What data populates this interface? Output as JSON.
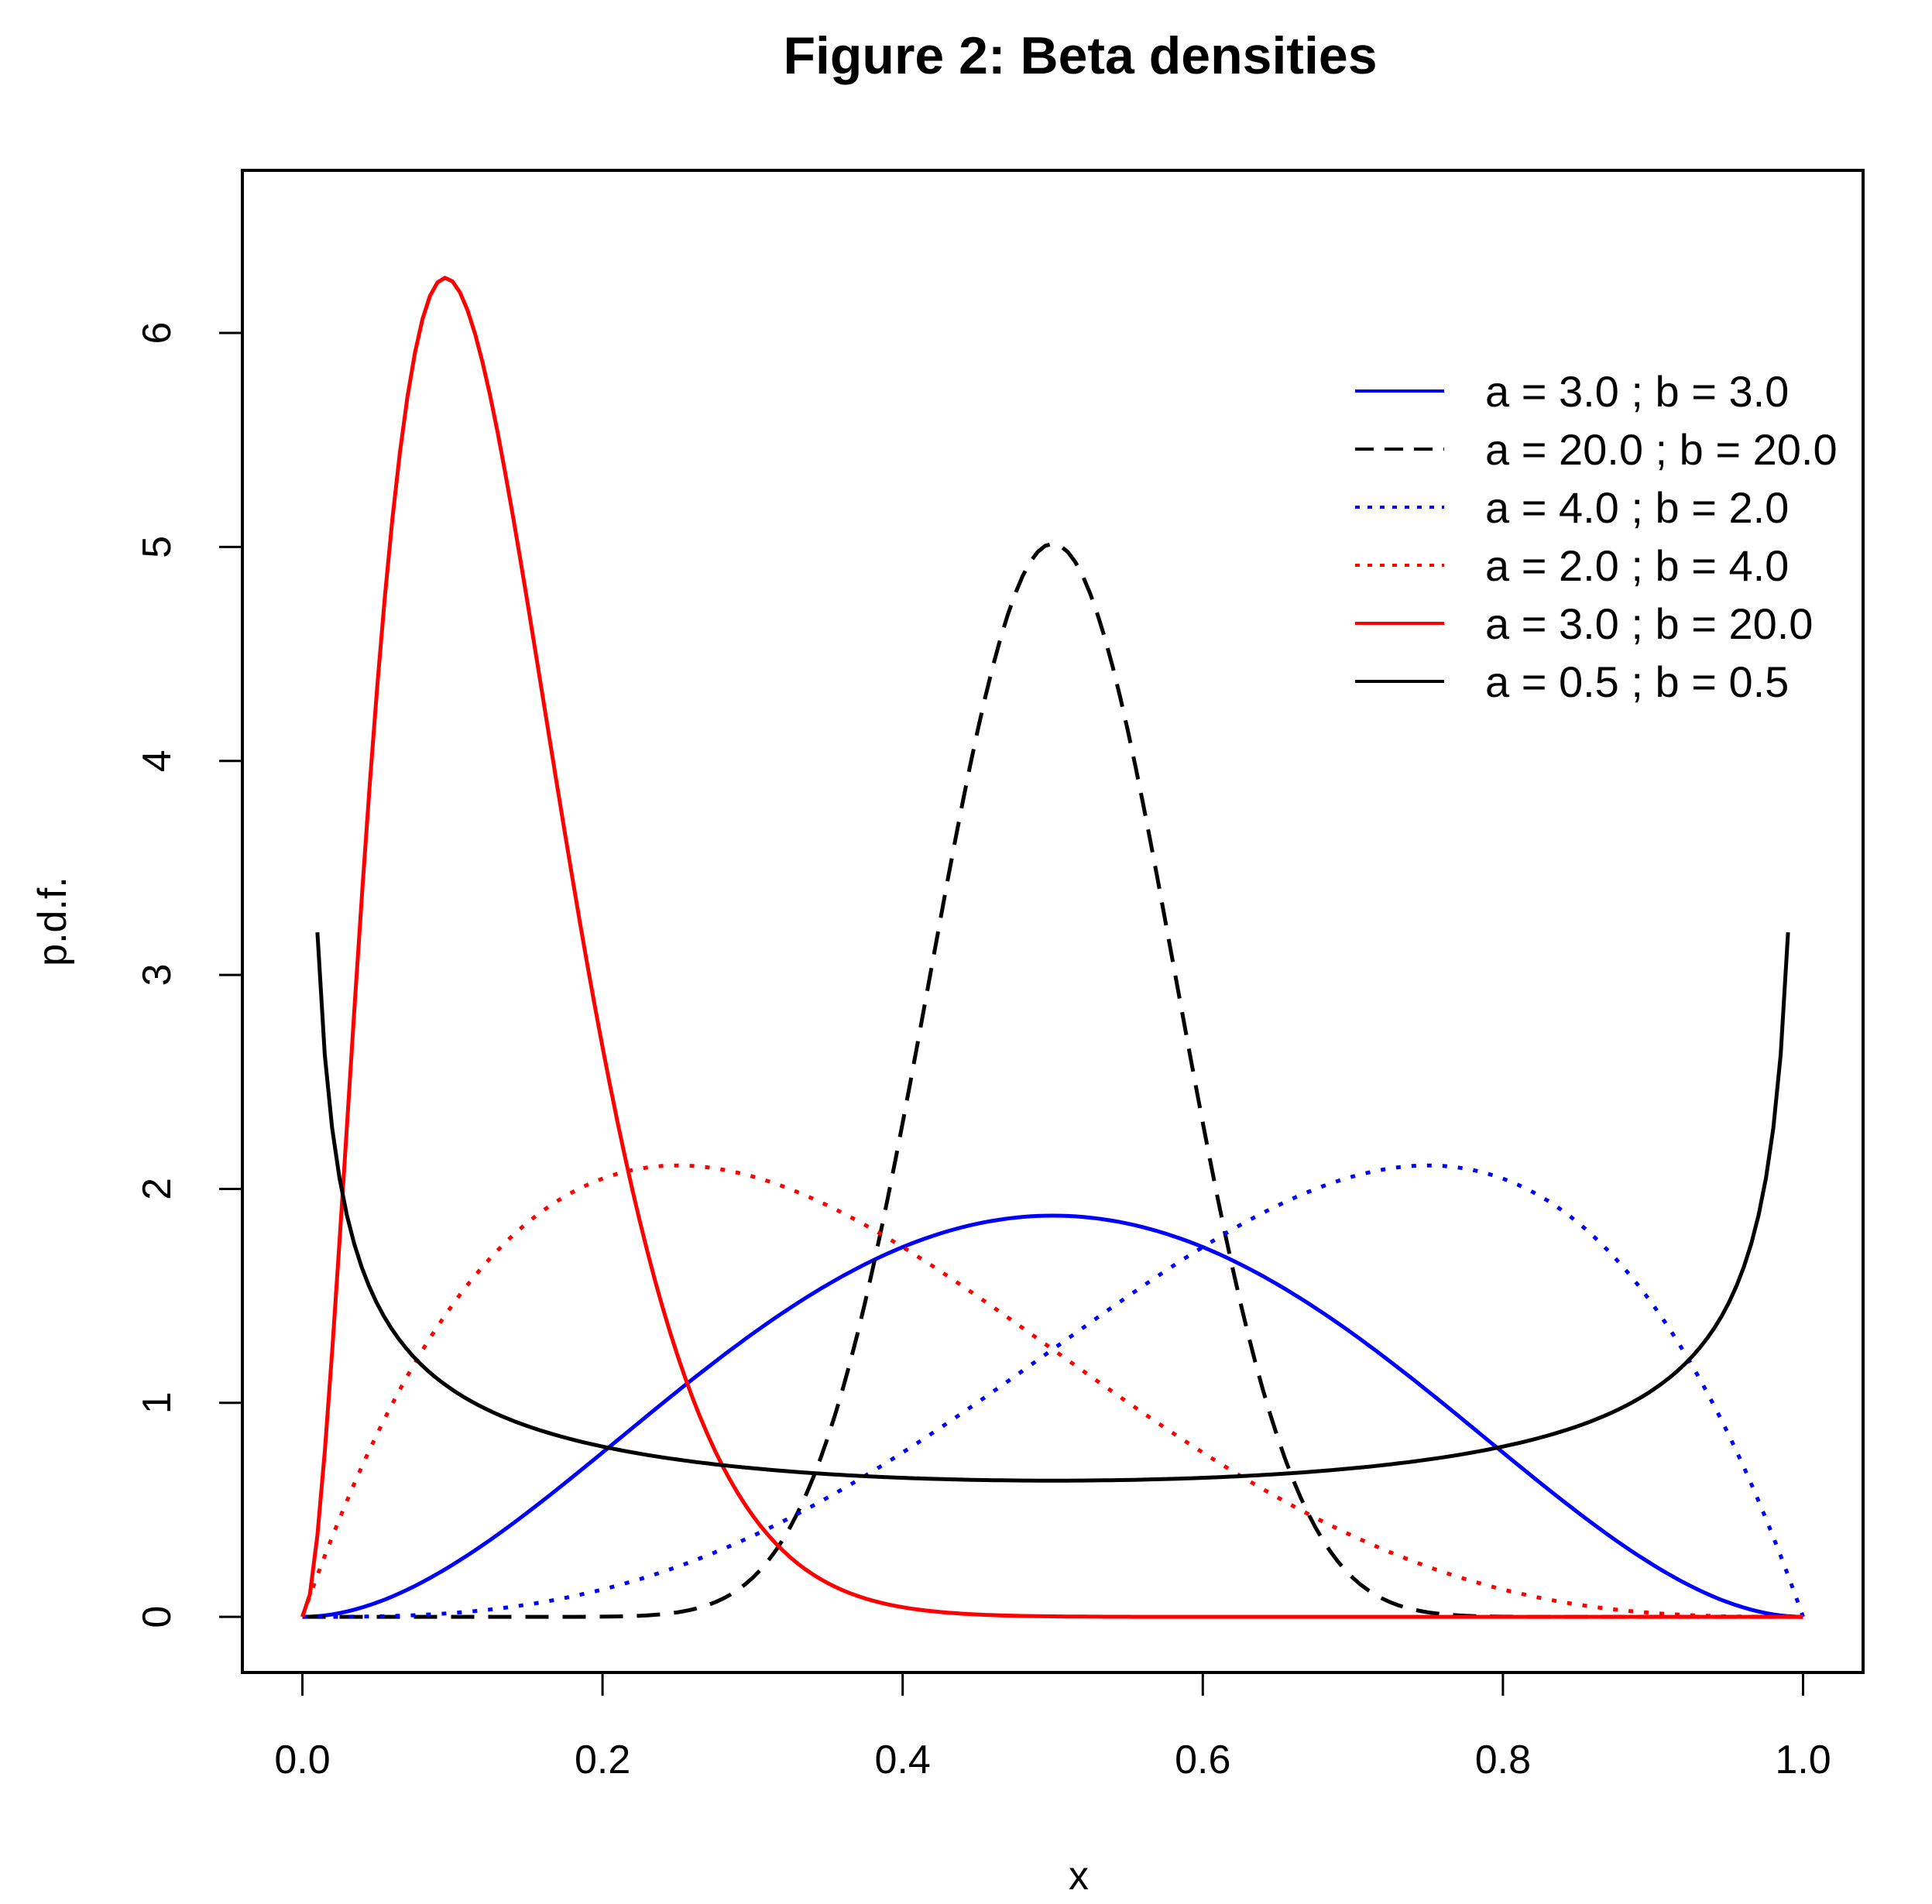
{
  "chart_data": {
    "type": "line",
    "title": "Figure 2: Beta densities",
    "xlabel": "x",
    "ylabel": "p.d.f.",
    "xlim": [
      -0.04,
      1.04
    ],
    "ylim": [
      -0.26,
      6.76
    ],
    "xticks": [
      "0.0",
      "0.2",
      "0.4",
      "0.6",
      "0.8",
      "1.0"
    ],
    "yticks": [
      "0",
      "1",
      "2",
      "3",
      "4",
      "5",
      "6"
    ],
    "grid": false,
    "legend_position": "top-right",
    "series": [
      {
        "name": "a = 3.0 ; b = 3.0",
        "a": 3.0,
        "b": 3.0,
        "color": "#0000FF",
        "dash": "solid",
        "x_min": 0.0,
        "x_max": 1.0
      },
      {
        "name": "a = 20.0 ; b = 20.0",
        "a": 20.0,
        "b": 20.0,
        "color": "#000000",
        "dash": "dashed",
        "x_min": 0.0,
        "x_max": 1.0
      },
      {
        "name": "a = 4.0 ; b = 2.0",
        "a": 4.0,
        "b": 2.0,
        "color": "#0000FF",
        "dash": "dotted",
        "x_min": 0.0,
        "x_max": 1.0
      },
      {
        "name": "a = 2.0 ; b = 4.0",
        "a": 2.0,
        "b": 4.0,
        "color": "#FF0000",
        "dash": "dotted",
        "x_min": 0.0,
        "x_max": 1.0
      },
      {
        "name": "a = 3.0 ; b = 20.0",
        "a": 3.0,
        "b": 20.0,
        "color": "#FF0000",
        "dash": "solid",
        "x_min": 0.0,
        "x_max": 1.0
      },
      {
        "name": "a = 0.5 ; b = 0.5",
        "a": 0.5,
        "b": 0.5,
        "color": "#000000",
        "dash": "solid",
        "x_min": 0.01,
        "x_max": 0.99
      }
    ]
  }
}
